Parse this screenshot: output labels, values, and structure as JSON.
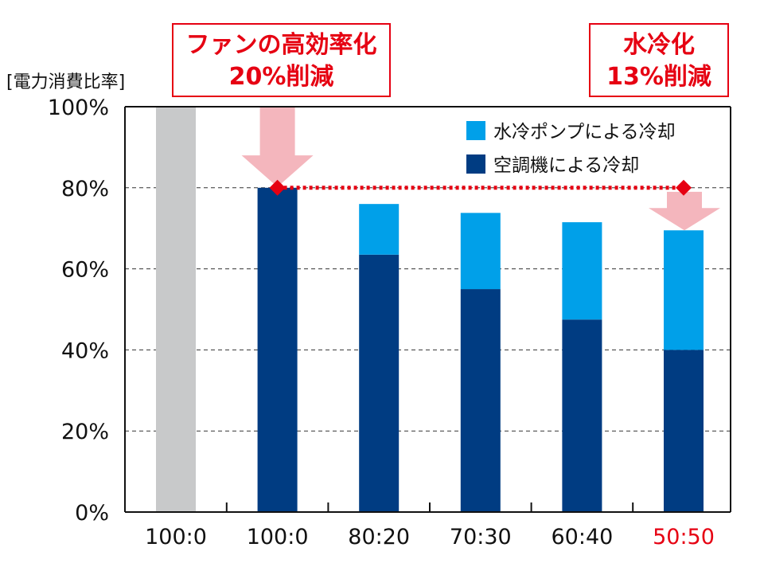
{
  "chart_data": {
    "type": "bar",
    "ylabel": "[電力消費比率]",
    "ylim": [
      0,
      100
    ],
    "y_ticks": [
      "0%",
      "20%",
      "40%",
      "60%",
      "80%",
      "100%"
    ],
    "categories": [
      "100:0",
      "100:0",
      "80:20",
      "70:30",
      "60:40",
      "50:50"
    ],
    "highlighted_category_color": "#e60012",
    "series": [
      {
        "name": "空調機による冷却",
        "color": "#003c82",
        "values": [
          0,
          80,
          63.5,
          55,
          47.5,
          40
        ]
      },
      {
        "name": "水冷ポンプによる冷却",
        "color": "#00a0e9",
        "values": [
          0,
          0,
          12.5,
          18.8,
          24,
          29.5
        ]
      }
    ],
    "baseline_bar": {
      "category_index": 0,
      "value": 100,
      "color": "#c8c9ca"
    },
    "grid": "dashed horizontal at 20% intervals",
    "legend_position": "top-right",
    "annotations": [
      {
        "id": "fan",
        "lines": [
          "ファンの高効率化",
          "20%削減"
        ],
        "color": "#e60012"
      },
      {
        "id": "water",
        "lines": [
          "水冷化",
          "13%削減"
        ],
        "color": "#e60012"
      }
    ],
    "reference_line": {
      "value": 80,
      "from_index": 1,
      "to_index": 5,
      "style": "red dotted",
      "color": "#e60012"
    },
    "arrow_color": "#f4b6bd"
  }
}
